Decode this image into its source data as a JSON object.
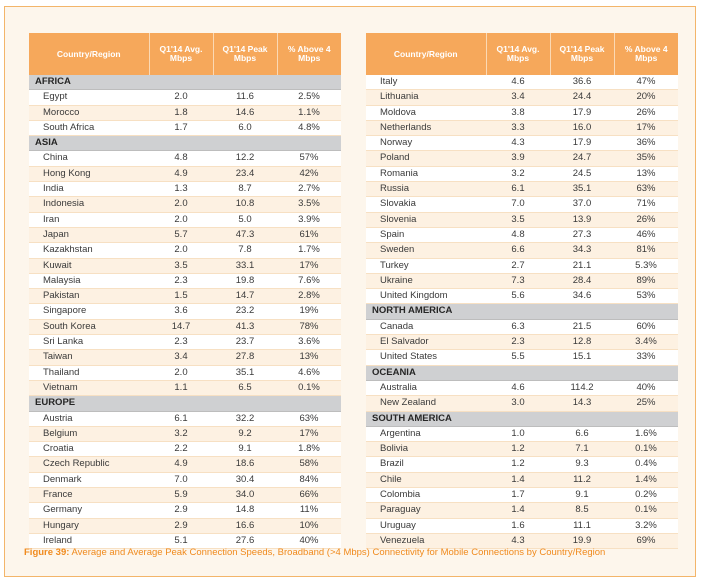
{
  "header": {
    "country": "Country/Region",
    "avg": "Q1'14 Avg. Mbps",
    "peak": "Q1'14 Peak Mbps",
    "above": "% Above 4 Mbps"
  },
  "left": [
    {
      "region": "AFRICA"
    },
    {
      "c": "Egypt",
      "a": "2.0",
      "p": "11.6",
      "x": "2.5%"
    },
    {
      "c": "Morocco",
      "a": "1.8",
      "p": "14.6",
      "x": "1.1%"
    },
    {
      "c": "South Africa",
      "a": "1.7",
      "p": "6.0",
      "x": "4.8%"
    },
    {
      "region": "ASIA"
    },
    {
      "c": "China",
      "a": "4.8",
      "p": "12.2",
      "x": "57%"
    },
    {
      "c": "Hong Kong",
      "a": "4.9",
      "p": "23.4",
      "x": "42%"
    },
    {
      "c": "India",
      "a": "1.3",
      "p": "8.7",
      "x": "2.7%"
    },
    {
      "c": "Indonesia",
      "a": "2.0",
      "p": "10.8",
      "x": "3.5%"
    },
    {
      "c": "Iran",
      "a": "2.0",
      "p": "5.0",
      "x": "3.9%"
    },
    {
      "c": "Japan",
      "a": "5.7",
      "p": "47.3",
      "x": "61%"
    },
    {
      "c": "Kazakhstan",
      "a": "2.0",
      "p": "7.8",
      "x": "1.7%"
    },
    {
      "c": "Kuwait",
      "a": "3.5",
      "p": "33.1",
      "x": "17%"
    },
    {
      "c": "Malaysia",
      "a": "2.3",
      "p": "19.8",
      "x": "7.6%"
    },
    {
      "c": "Pakistan",
      "a": "1.5",
      "p": "14.7",
      "x": "2.8%"
    },
    {
      "c": "Singapore",
      "a": "3.6",
      "p": "23.2",
      "x": "19%"
    },
    {
      "c": "South Korea",
      "a": "14.7",
      "p": "41.3",
      "x": "78%"
    },
    {
      "c": "Sri Lanka",
      "a": "2.3",
      "p": "23.7",
      "x": "3.6%"
    },
    {
      "c": "Taiwan",
      "a": "3.4",
      "p": "27.8",
      "x": "13%"
    },
    {
      "c": "Thailand",
      "a": "2.0",
      "p": "35.1",
      "x": "4.6%"
    },
    {
      "c": "Vietnam",
      "a": "1.1",
      "p": "6.5",
      "x": "0.1%"
    },
    {
      "region": "EUROPE"
    },
    {
      "c": "Austria",
      "a": "6.1",
      "p": "32.2",
      "x": "63%"
    },
    {
      "c": "Belgium",
      "a": "3.2",
      "p": "9.2",
      "x": "17%"
    },
    {
      "c": "Croatia",
      "a": "2.2",
      "p": "9.1",
      "x": "1.8%"
    },
    {
      "c": "Czech Republic",
      "a": "4.9",
      "p": "18.6",
      "x": "58%"
    },
    {
      "c": "Denmark",
      "a": "7.0",
      "p": "30.4",
      "x": "84%"
    },
    {
      "c": "France",
      "a": "5.9",
      "p": "34.0",
      "x": "66%"
    },
    {
      "c": "Germany",
      "a": "2.9",
      "p": "14.8",
      "x": "11%"
    },
    {
      "c": "Hungary",
      "a": "2.9",
      "p": "16.6",
      "x": "10%"
    },
    {
      "c": "Ireland",
      "a": "5.1",
      "p": "27.6",
      "x": "40%"
    }
  ],
  "right": [
    {
      "c": "Italy",
      "a": "4.6",
      "p": "36.6",
      "x": "47%"
    },
    {
      "c": "Lithuania",
      "a": "3.4",
      "p": "24.4",
      "x": "20%"
    },
    {
      "c": "Moldova",
      "a": "3.8",
      "p": "17.9",
      "x": "26%"
    },
    {
      "c": "Netherlands",
      "a": "3.3",
      "p": "16.0",
      "x": "17%"
    },
    {
      "c": "Norway",
      "a": "4.3",
      "p": "17.9",
      "x": "36%"
    },
    {
      "c": "Poland",
      "a": "3.9",
      "p": "24.7",
      "x": "35%"
    },
    {
      "c": "Romania",
      "a": "3.2",
      "p": "24.5",
      "x": "13%"
    },
    {
      "c": "Russia",
      "a": "6.1",
      "p": "35.1",
      "x": "63%"
    },
    {
      "c": "Slovakia",
      "a": "7.0",
      "p": "37.0",
      "x": "71%"
    },
    {
      "c": "Slovenia",
      "a": "3.5",
      "p": "13.9",
      "x": "26%"
    },
    {
      "c": "Spain",
      "a": "4.8",
      "p": "27.3",
      "x": "46%"
    },
    {
      "c": "Sweden",
      "a": "6.6",
      "p": "34.3",
      "x": "81%"
    },
    {
      "c": "Turkey",
      "a": "2.7",
      "p": "21.1",
      "x": "5.3%"
    },
    {
      "c": "Ukraine",
      "a": "7.3",
      "p": "28.4",
      "x": "89%"
    },
    {
      "c": "United Kingdom",
      "a": "5.6",
      "p": "34.6",
      "x": "53%"
    },
    {
      "region": "NORTH AMERICA"
    },
    {
      "c": "Canada",
      "a": "6.3",
      "p": "21.5",
      "x": "60%"
    },
    {
      "c": "El Salvador",
      "a": "2.3",
      "p": "12.8",
      "x": "3.4%"
    },
    {
      "c": "United States",
      "a": "5.5",
      "p": "15.1",
      "x": "33%"
    },
    {
      "region": "OCEANIA"
    },
    {
      "c": "Australia",
      "a": "4.6",
      "p": "114.2",
      "x": "40%"
    },
    {
      "c": "New Zealand",
      "a": "3.0",
      "p": "14.3",
      "x": "25%"
    },
    {
      "region": "SOUTH AMERICA"
    },
    {
      "c": "Argentina",
      "a": "1.0",
      "p": "6.6",
      "x": "1.6%"
    },
    {
      "c": "Bolivia",
      "a": "1.2",
      "p": "7.1",
      "x": "0.1%"
    },
    {
      "c": "Brazil",
      "a": "1.2",
      "p": "9.3",
      "x": "0.4%"
    },
    {
      "c": "Chile",
      "a": "1.4",
      "p": "11.2",
      "x": "1.4%"
    },
    {
      "c": "Colombia",
      "a": "1.7",
      "p": "9.1",
      "x": "0.2%"
    },
    {
      "c": "Paraguay",
      "a": "1.4",
      "p": "8.5",
      "x": "0.1%"
    },
    {
      "c": "Uruguay",
      "a": "1.6",
      "p": "11.1",
      "x": "3.2%"
    },
    {
      "c": "Venezuela",
      "a": "4.3",
      "p": "19.9",
      "x": "69%"
    }
  ],
  "caption": {
    "label": "Figure 39:",
    "text": " Average and Average Peak Connection Speeds, Broadband (>4 Mbps) Connectivity for Mobile Connections by Country/Region"
  },
  "colors": {
    "header": "#f6a85b",
    "region": "#cfd0d2",
    "accent": "#f08a1d"
  }
}
